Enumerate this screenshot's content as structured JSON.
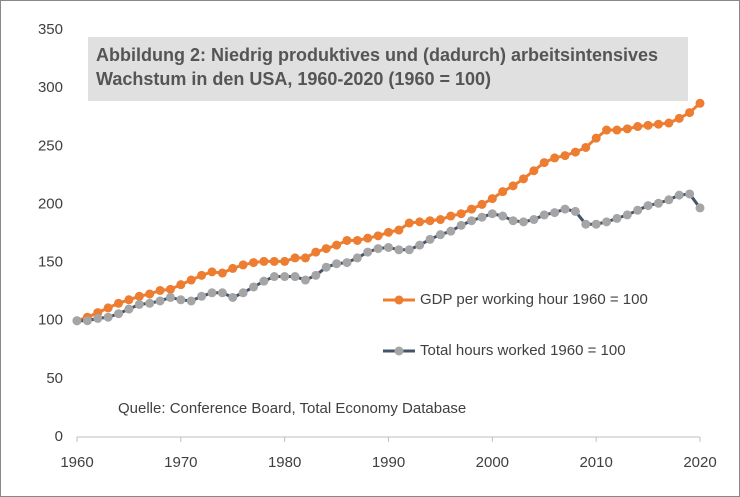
{
  "chart_data": {
    "type": "line",
    "title": "Abbildung 2: Niedrig produktives und (dadurch) arbeitsintensives Wachstum in den USA, 1960-2020 (1960 = 100)",
    "annotation": "Quelle: Conference Board, Total Economy Database",
    "x": [
      1960,
      1961,
      1962,
      1963,
      1964,
      1965,
      1966,
      1967,
      1968,
      1969,
      1970,
      1971,
      1972,
      1973,
      1974,
      1975,
      1976,
      1977,
      1978,
      1979,
      1980,
      1981,
      1982,
      1983,
      1984,
      1985,
      1986,
      1987,
      1988,
      1989,
      1990,
      1991,
      1992,
      1993,
      1994,
      1995,
      1996,
      1997,
      1998,
      1999,
      2000,
      2001,
      2002,
      2003,
      2004,
      2005,
      2006,
      2007,
      2008,
      2009,
      2010,
      2011,
      2012,
      2013,
      2014,
      2015,
      2016,
      2017,
      2018,
      2019,
      2020
    ],
    "series": [
      {
        "name": "GDP per working hour 1960 = 100",
        "color": "#ed7d31",
        "line_color": "#ed7d31",
        "values": [
          100,
          103,
          107,
          111,
          115,
          118,
          121,
          123,
          126,
          127,
          131,
          135,
          139,
          142,
          141,
          145,
          148,
          150,
          151,
          151,
          151,
          154,
          154,
          159,
          162,
          165,
          169,
          169,
          171,
          173,
          176,
          178,
          184,
          185,
          186,
          187,
          190,
          192,
          196,
          200,
          205,
          211,
          216,
          222,
          229,
          236,
          240,
          242,
          245,
          249,
          257,
          264,
          264,
          265,
          267,
          268,
          269,
          270,
          274,
          279,
          287
        ]
      },
      {
        "name": "Total hours worked 1960 = 100",
        "color": "#a5a5a5",
        "line_color": "#44546a",
        "values": [
          100,
          100,
          102,
          103,
          106,
          110,
          114,
          115,
          117,
          120,
          118,
          117,
          121,
          124,
          124,
          120,
          124,
          129,
          134,
          138,
          138,
          138,
          135,
          139,
          146,
          149,
          150,
          154,
          159,
          162,
          163,
          161,
          161,
          165,
          170,
          174,
          177,
          182,
          186,
          189,
          192,
          190,
          186,
          185,
          187,
          191,
          193,
          196,
          194,
          183,
          183,
          185,
          188,
          191,
          195,
          199,
          201,
          204,
          208,
          209,
          197
        ]
      }
    ],
    "xlim": [
      1960,
      2020
    ],
    "xticks": [
      1960,
      1970,
      1980,
      1990,
      2000,
      2010,
      2020
    ],
    "ylim": [
      0,
      350
    ],
    "yticks": [
      0,
      50,
      100,
      150,
      200,
      250,
      300,
      350
    ],
    "grid": false
  }
}
